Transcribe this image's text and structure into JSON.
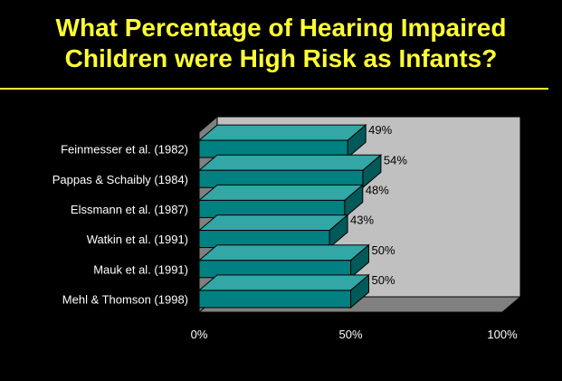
{
  "title": {
    "line1": "What Percentage of Hearing Impaired",
    "line2": "Children were High Risk as Infants?"
  },
  "colors": {
    "background": "#000000",
    "title": "#FFFF33",
    "bar_front": "#008080",
    "bar_top": "#33A6A6",
    "bar_side": "#005A5A",
    "plot_back": "#C0C0C0",
    "plot_floor": "#808080"
  },
  "chart_data": {
    "type": "bar",
    "orientation": "horizontal",
    "three_d": true,
    "categories": [
      "Feinmesser et al. (1982)",
      "Pappas & Schaibly (1984)",
      "Elssmann et al. (1987)",
      "Watkin et al. (1991)",
      "Mauk et al. (1991)",
      "Mehl & Thomson (1998)"
    ],
    "values": [
      49,
      54,
      48,
      43,
      50,
      50
    ],
    "data_labels": [
      "49%",
      "54%",
      "48%",
      "43%",
      "50%",
      "50%"
    ],
    "xlim": [
      0,
      100
    ],
    "xticks": [
      0,
      50,
      100
    ],
    "xtick_labels": [
      "0%",
      "50%",
      "100%"
    ],
    "legend": "none",
    "grid": false
  }
}
